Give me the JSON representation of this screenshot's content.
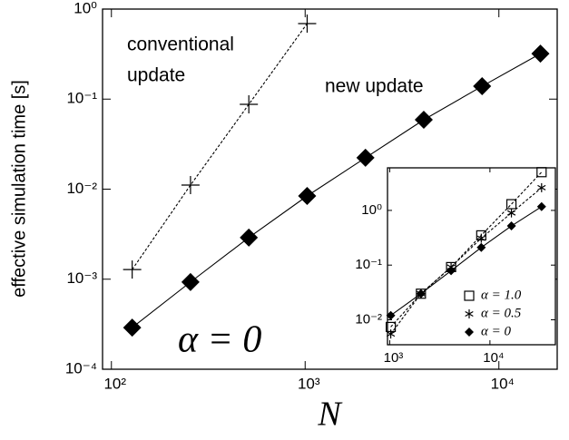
{
  "chart_data": [
    {
      "type": "line",
      "xlabel": "N",
      "ylabel": "effective simulation time [s]",
      "xscale": "log",
      "yscale": "log",
      "x": [
        128,
        256,
        512,
        1024,
        2048,
        4096,
        8192,
        16384
      ],
      "series": [
        {
          "name": "conventional update",
          "color": "#000000",
          "dash": true,
          "marker": "plus",
          "values": [
            0.00128,
            0.0111,
            0.0875,
            0.69,
            null,
            null,
            null,
            null
          ]
        },
        {
          "name": "new update",
          "color": "#000000",
          "dash": false,
          "marker": "diamond",
          "values": [
            0.00029,
            0.00093,
            0.0029,
            0.0084,
            0.0223,
            0.059,
            0.139,
            0.32
          ]
        }
      ],
      "annotations": [
        "conventional",
        "update",
        "new update",
        "α = 0"
      ],
      "xlim": [
        90,
        20000
      ],
      "ylim": [
        0.0001,
        1
      ],
      "xticks": [
        {
          "value": 100,
          "label": "10²"
        },
        {
          "value": 1000,
          "label": "10³"
        },
        {
          "value": 10000,
          "label": "10⁴"
        }
      ],
      "yticks": [
        {
          "value": 0.0001,
          "label": "10⁻⁴"
        },
        {
          "value": 0.001,
          "label": "10⁻³"
        },
        {
          "value": 0.01,
          "label": "10⁻²"
        },
        {
          "value": 0.1,
          "label": "10⁻¹"
        },
        {
          "value": 1,
          "label": "10⁰"
        }
      ]
    },
    {
      "type": "line",
      "xscale": "log",
      "yscale": "log",
      "legend": "lower right",
      "x": [
        1024,
        2048,
        4096,
        8192,
        16384,
        32768
      ],
      "series": [
        {
          "name": "α = 1.0",
          "color": "#000000",
          "dash": true,
          "marker": "square",
          "values": [
            0.0074,
            0.03,
            0.092,
            0.35,
            1.3,
            5.0
          ]
        },
        {
          "name": "α = 0.5",
          "color": "#000000",
          "dash": true,
          "marker": "star",
          "values": [
            0.0055,
            0.03,
            0.092,
            0.31,
            0.9,
            2.6
          ]
        },
        {
          "name": "α = 0",
          "color": "#000000",
          "dash": false,
          "marker": "diamond",
          "values": [
            0.012,
            0.03,
            0.079,
            0.21,
            0.52,
            1.17
          ]
        }
      ],
      "xlim": [
        950,
        45000
      ],
      "ylim": [
        0.0035,
        6
      ],
      "xticks": [
        {
          "value": 1000,
          "label": "10³"
        },
        {
          "value": 10000,
          "label": "10⁴"
        }
      ],
      "yticks": [
        {
          "value": 0.01,
          "label": "10⁻²"
        },
        {
          "value": 0.1,
          "label": "10⁻¹"
        },
        {
          "value": 1,
          "label": "10⁰"
        }
      ]
    }
  ]
}
